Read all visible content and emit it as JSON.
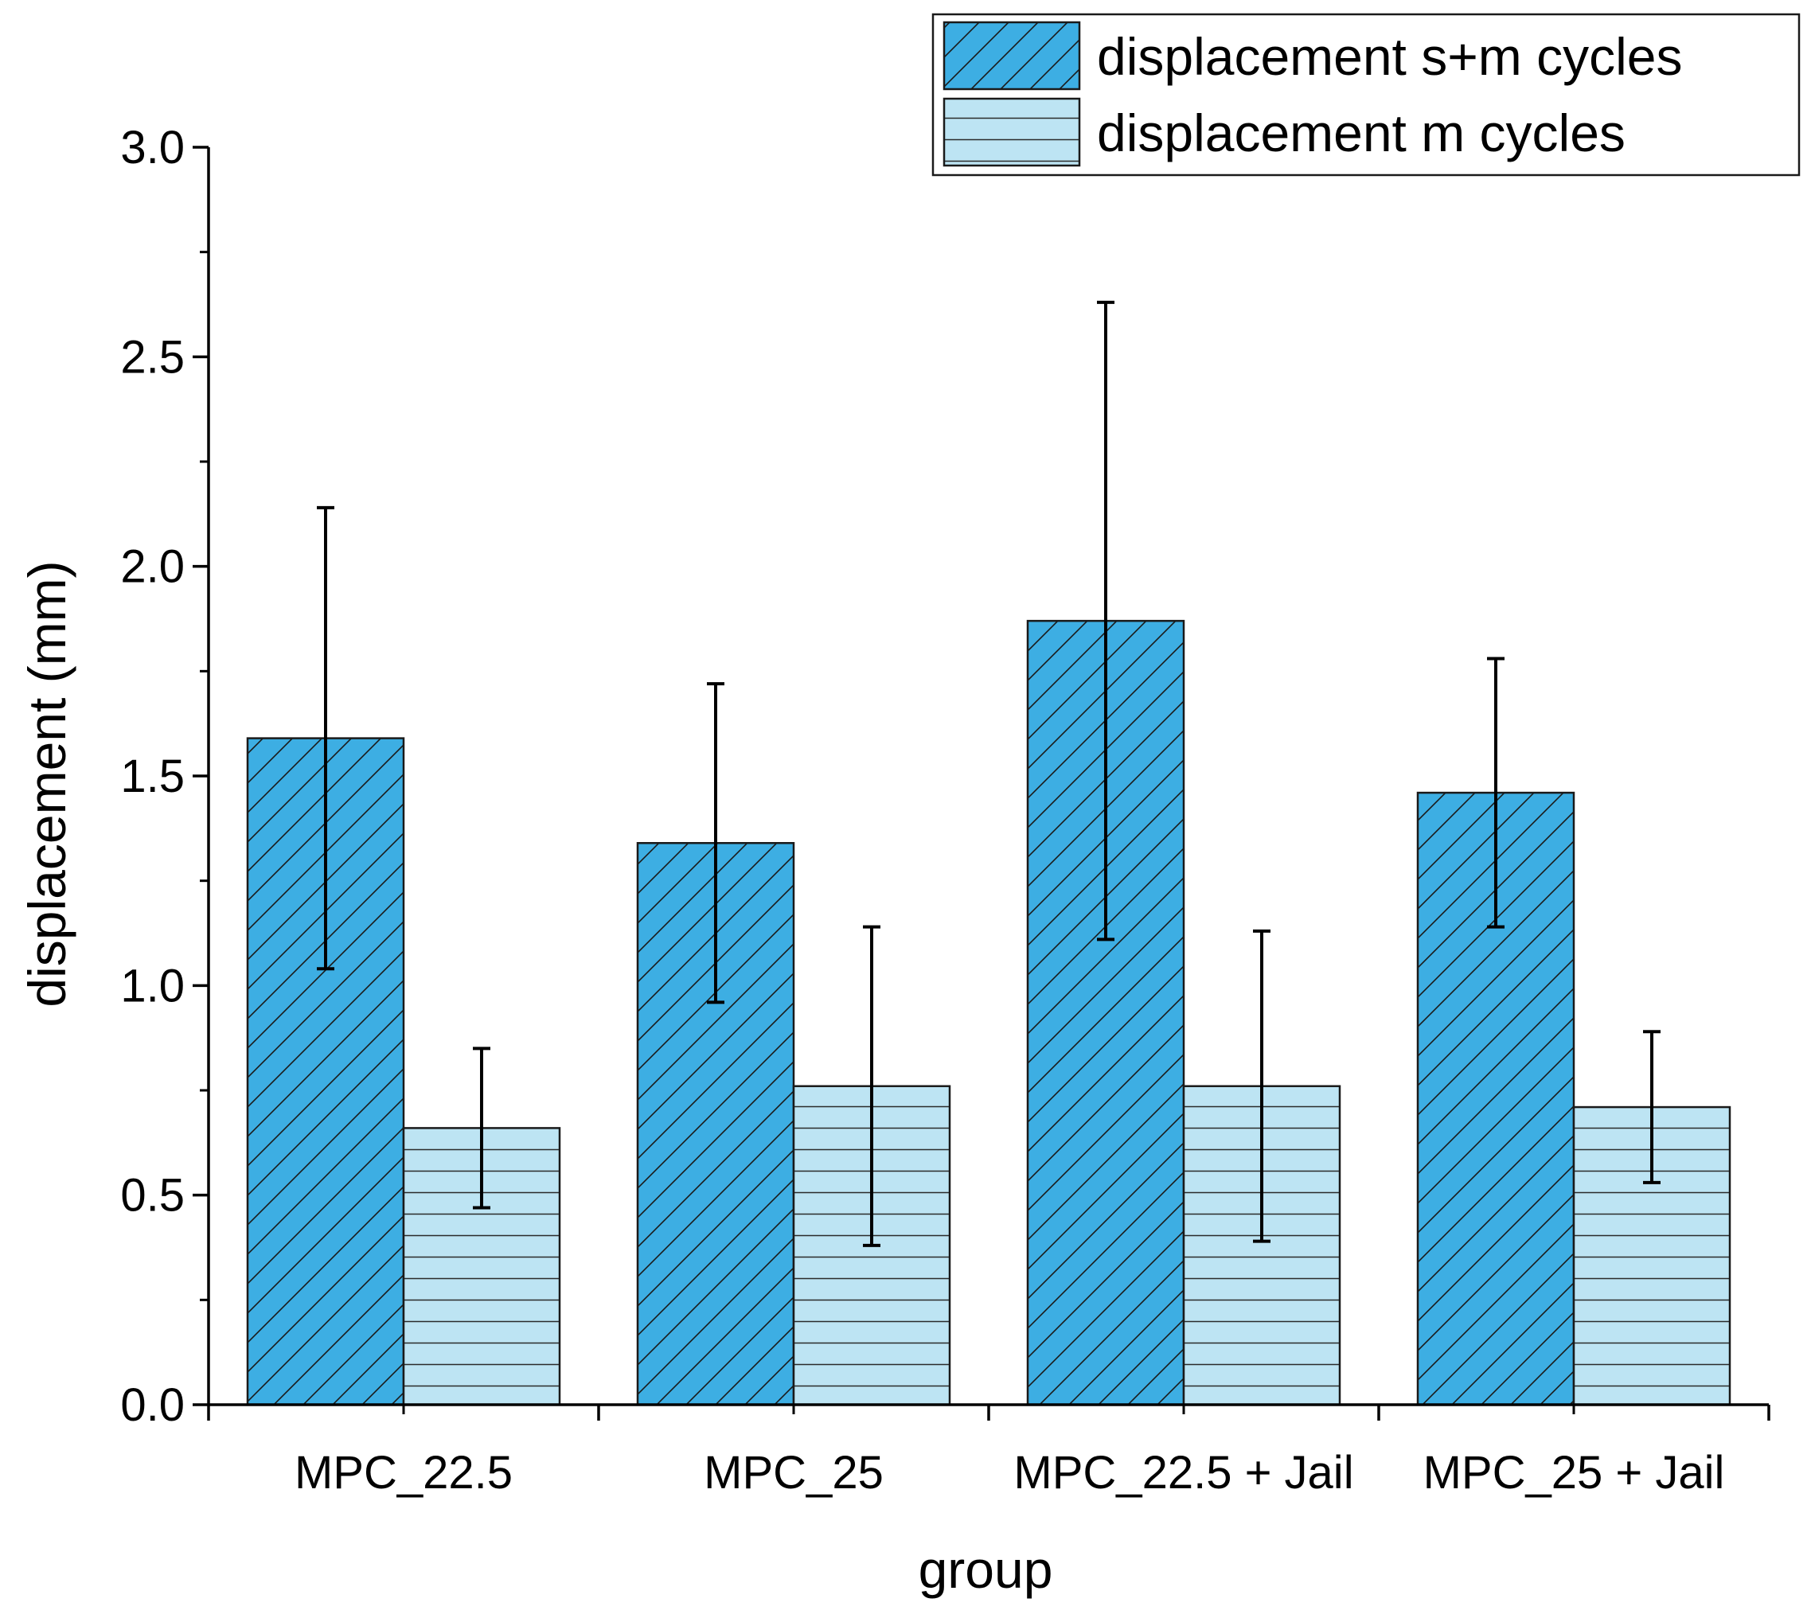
{
  "chart_data": {
    "type": "bar",
    "xlabel": "group",
    "ylabel": "displacement (mm)",
    "ylim": [
      0,
      3.0
    ],
    "yticks": [
      "0.0",
      "0.5",
      "1.0",
      "1.5",
      "2.0",
      "2.5",
      "3.0"
    ],
    "yticks_values": [
      0,
      0.5,
      1.0,
      1.5,
      2.0,
      2.5,
      3.0
    ],
    "categories": [
      "MPC_22.5",
      "MPC_25",
      "MPC_22.5 + Jail",
      "MPC_25 + Jail"
    ],
    "legend_position": "top-right",
    "series": [
      {
        "name": "displacement s+m cycles",
        "values": [
          1.59,
          1.34,
          1.87,
          1.46
        ],
        "error_low": [
          1.04,
          0.96,
          1.11,
          1.14
        ],
        "error_high": [
          2.14,
          1.72,
          2.63,
          1.78
        ],
        "color": "#3daee3",
        "pattern": "diagonal"
      },
      {
        "name": "displacement m cycles",
        "values": [
          0.66,
          0.76,
          0.76,
          0.71
        ],
        "error_low": [
          0.47,
          0.38,
          0.39,
          0.53
        ],
        "error_high": [
          0.85,
          1.14,
          1.13,
          0.89
        ],
        "color": "#bde4f3",
        "pattern": "horizontal"
      }
    ]
  }
}
